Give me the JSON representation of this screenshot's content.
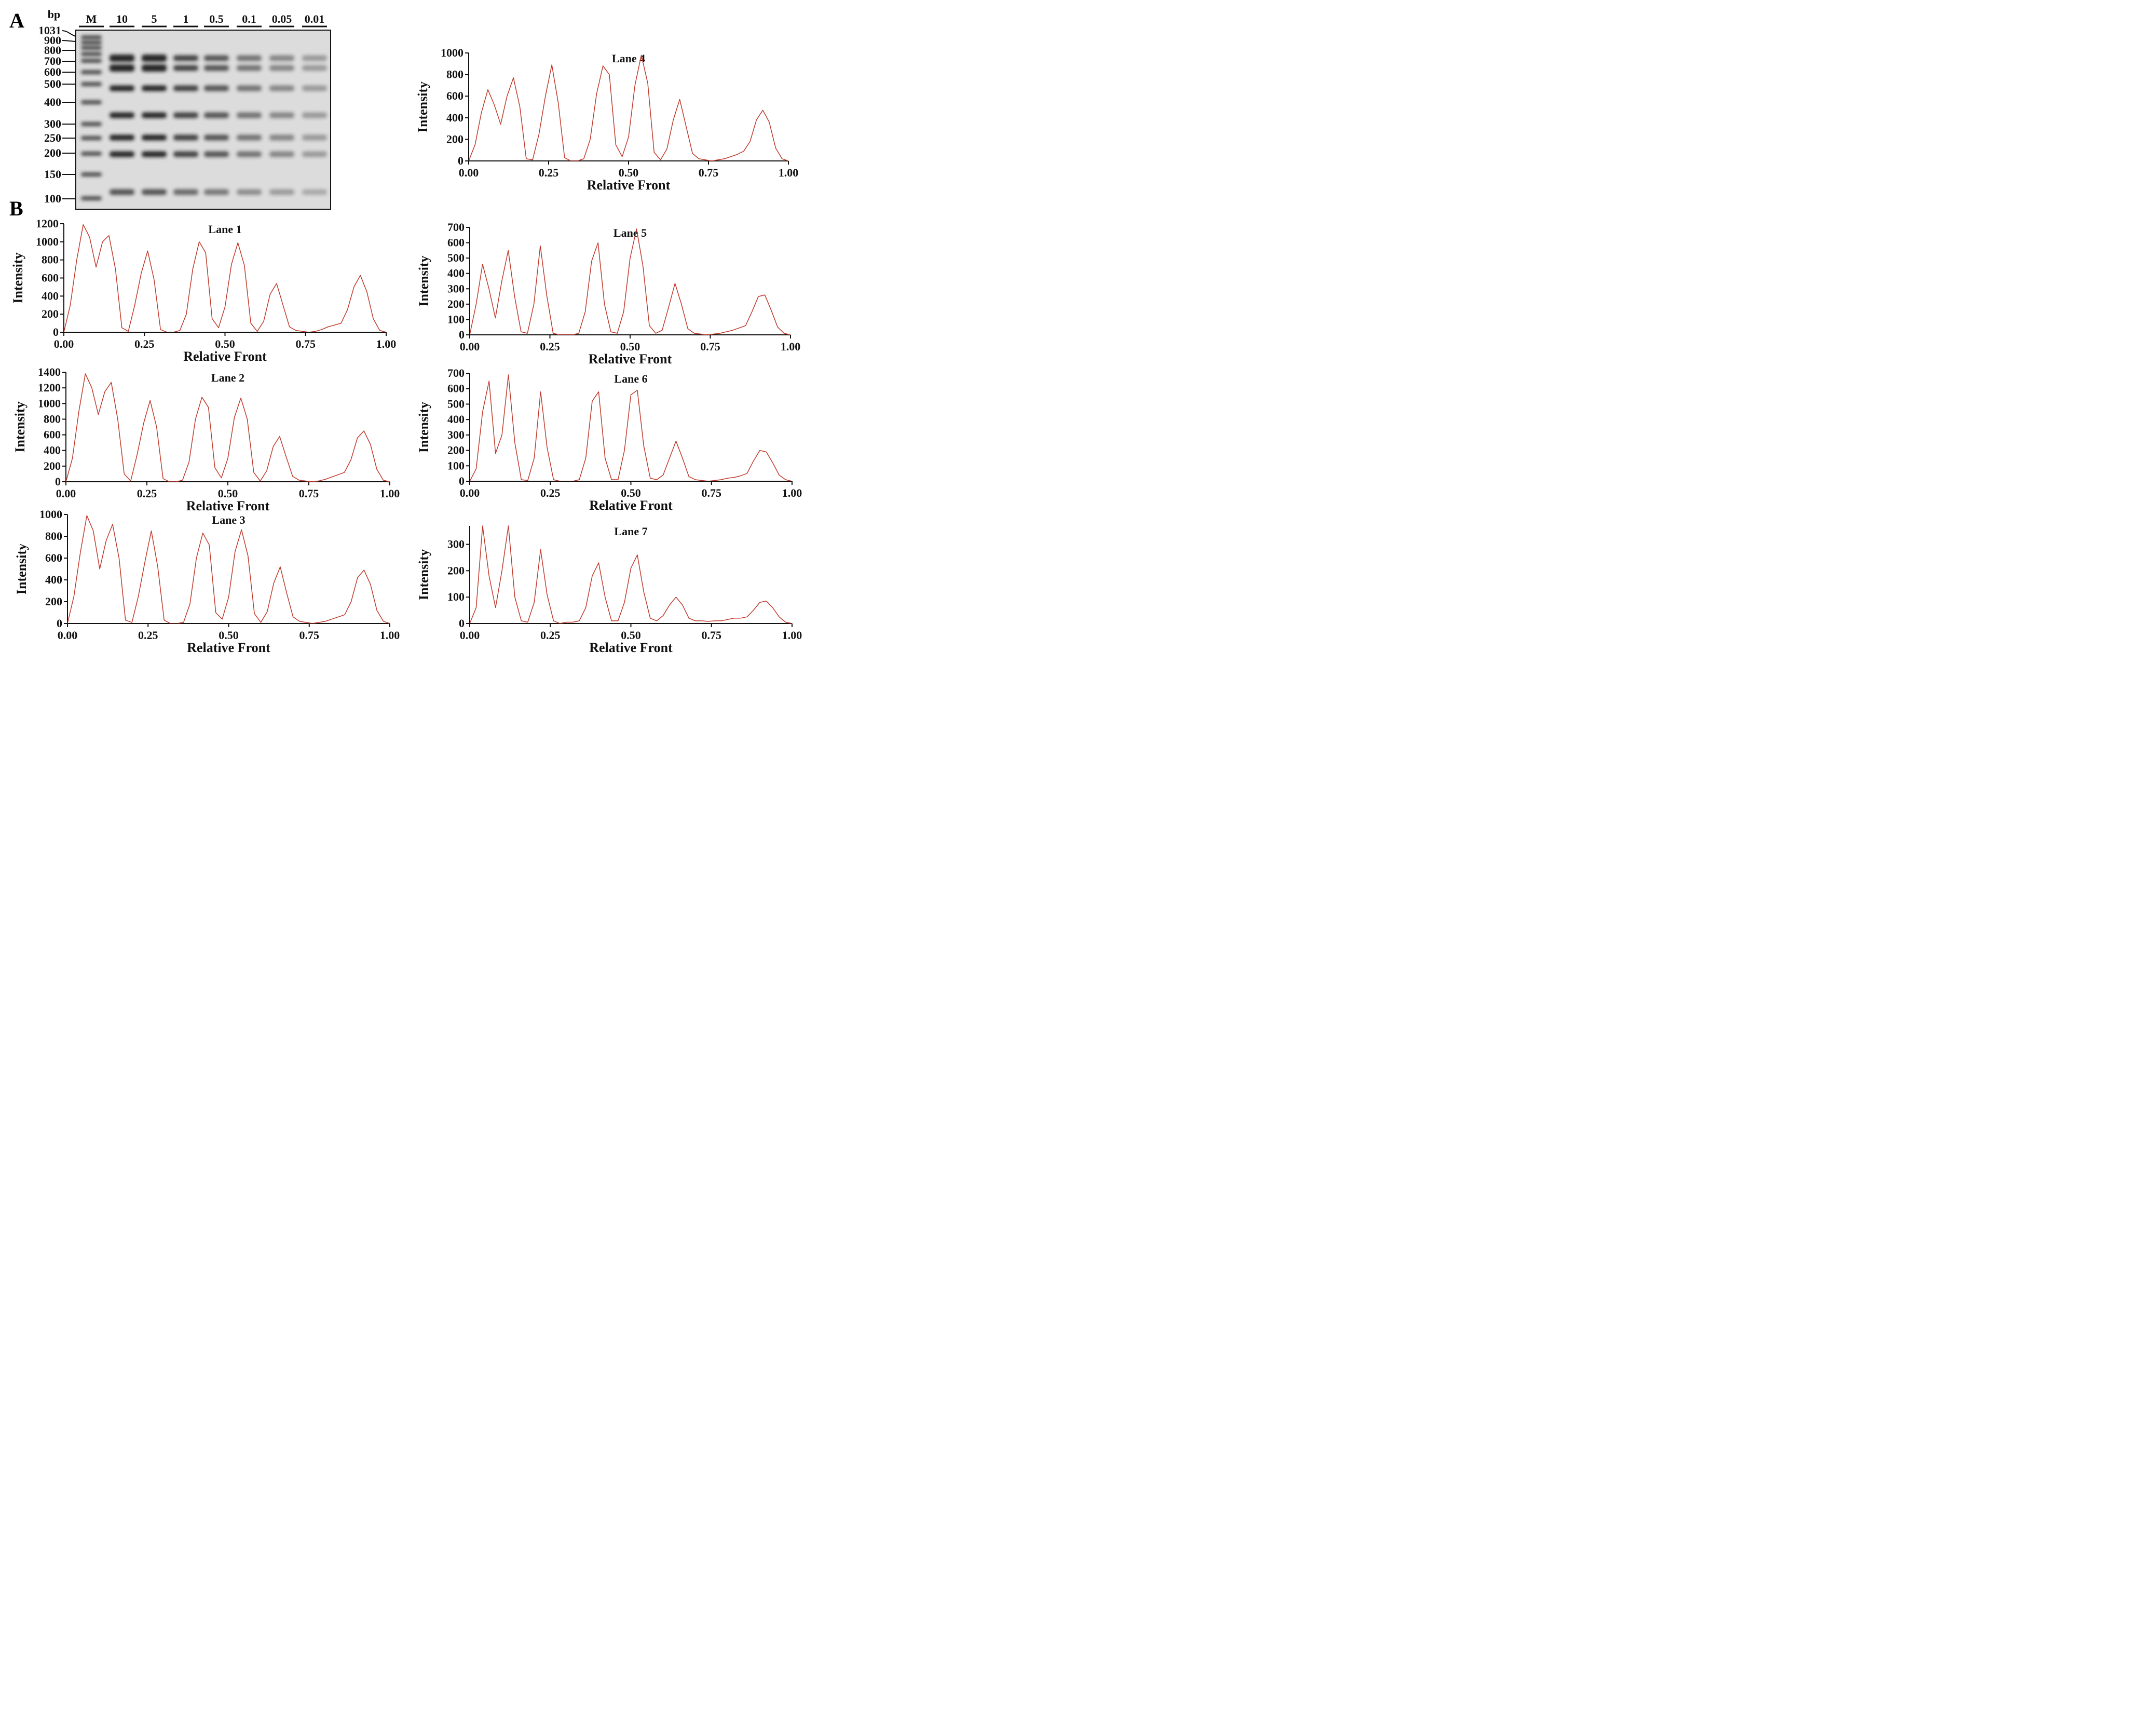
{
  "panels": {
    "a_label": "A",
    "b_label": "B"
  },
  "gel": {
    "unit_label": "bp",
    "lane_labels": [
      "M",
      "10",
      "5",
      "1",
      "0.5",
      "0.1",
      "0.05",
      "0.01"
    ],
    "marker_sizes": [
      "1031",
      "900",
      "800",
      "700",
      "600",
      "500",
      "400",
      "300",
      "250",
      "200",
      "150",
      "100"
    ]
  },
  "chart_data": [
    {
      "type": "line",
      "title": "Lane 1",
      "xlabel": "Relative Front",
      "ylabel": "Intensity",
      "xlim": [
        0,
        1
      ],
      "ylim": [
        0,
        1200
      ],
      "xticks": [
        "0.00",
        "0.25",
        "0.50",
        "0.75",
        "1.00"
      ],
      "yticks": [
        "0",
        "200",
        "400",
        "600",
        "800",
        "1000",
        "1200"
      ],
      "x": [
        0.0,
        0.02,
        0.04,
        0.06,
        0.08,
        0.1,
        0.12,
        0.14,
        0.16,
        0.18,
        0.2,
        0.22,
        0.24,
        0.26,
        0.28,
        0.3,
        0.32,
        0.34,
        0.36,
        0.38,
        0.4,
        0.42,
        0.44,
        0.46,
        0.48,
        0.5,
        0.52,
        0.54,
        0.56,
        0.58,
        0.6,
        0.62,
        0.64,
        0.66,
        0.68,
        0.7,
        0.72,
        0.74,
        0.76,
        0.78,
        0.8,
        0.82,
        0.84,
        0.86,
        0.88,
        0.9,
        0.92,
        0.94,
        0.96,
        0.98,
        1.0
      ],
      "y": [
        0,
        300,
        800,
        1190,
        1050,
        720,
        1000,
        1070,
        700,
        50,
        10,
        300,
        650,
        900,
        580,
        30,
        0,
        0,
        20,
        200,
        700,
        1000,
        880,
        150,
        50,
        280,
        750,
        990,
        740,
        100,
        10,
        120,
        420,
        540,
        300,
        60,
        20,
        10,
        0,
        10,
        30,
        60,
        80,
        100,
        250,
        500,
        630,
        450,
        150,
        20,
        0
      ]
    },
    {
      "type": "line",
      "title": "Lane 2",
      "xlabel": "Relative Front",
      "ylabel": "Intensity",
      "xlim": [
        0,
        1
      ],
      "ylim": [
        0,
        1400
      ],
      "xticks": [
        "0.00",
        "0.25",
        "0.50",
        "0.75",
        "1.00"
      ],
      "yticks": [
        "0",
        "200",
        "400",
        "600",
        "800",
        "1000",
        "1200",
        "1400"
      ],
      "x": [
        0.0,
        0.02,
        0.04,
        0.06,
        0.08,
        0.1,
        0.12,
        0.14,
        0.16,
        0.18,
        0.2,
        0.22,
        0.24,
        0.26,
        0.28,
        0.3,
        0.32,
        0.34,
        0.36,
        0.38,
        0.4,
        0.42,
        0.44,
        0.46,
        0.48,
        0.5,
        0.52,
        0.54,
        0.56,
        0.58,
        0.6,
        0.62,
        0.64,
        0.66,
        0.68,
        0.7,
        0.72,
        0.74,
        0.76,
        0.78,
        0.8,
        0.82,
        0.84,
        0.86,
        0.88,
        0.9,
        0.92,
        0.94,
        0.96,
        0.98,
        1.0
      ],
      "y": [
        0,
        300,
        900,
        1380,
        1200,
        860,
        1150,
        1270,
        800,
        100,
        10,
        350,
        750,
        1040,
        700,
        40,
        0,
        0,
        20,
        250,
        800,
        1080,
        950,
        180,
        50,
        300,
        820,
        1070,
        800,
        120,
        10,
        140,
        450,
        580,
        320,
        70,
        20,
        10,
        0,
        10,
        30,
        60,
        90,
        120,
        280,
        560,
        650,
        480,
        160,
        20,
        0
      ]
    },
    {
      "type": "line",
      "title": "Lane 3",
      "xlabel": "Relative Front",
      "ylabel": "Intensity",
      "xlim": [
        0,
        1
      ],
      "ylim": [
        0,
        1000
      ],
      "xticks": [
        "0.00",
        "0.25",
        "0.50",
        "0.75",
        "1.00"
      ],
      "yticks": [
        "0",
        "200",
        "400",
        "600",
        "800",
        "1000"
      ],
      "x": [
        0.0,
        0.02,
        0.04,
        0.06,
        0.08,
        0.1,
        0.12,
        0.14,
        0.16,
        0.18,
        0.2,
        0.22,
        0.24,
        0.26,
        0.28,
        0.3,
        0.32,
        0.34,
        0.36,
        0.38,
        0.4,
        0.42,
        0.44,
        0.46,
        0.48,
        0.5,
        0.52,
        0.54,
        0.56,
        0.58,
        0.6,
        0.62,
        0.64,
        0.66,
        0.68,
        0.7,
        0.72,
        0.74,
        0.76,
        0.78,
        0.8,
        0.82,
        0.84,
        0.86,
        0.88,
        0.9,
        0.92,
        0.94,
        0.96,
        0.98,
        1.0
      ],
      "y": [
        0,
        250,
        650,
        990,
        850,
        500,
        760,
        910,
        600,
        30,
        10,
        250,
        560,
        850,
        520,
        30,
        0,
        0,
        10,
        180,
        600,
        830,
        720,
        100,
        40,
        240,
        660,
        860,
        620,
        90,
        10,
        110,
        370,
        520,
        280,
        60,
        20,
        10,
        0,
        10,
        20,
        40,
        60,
        80,
        200,
        420,
        490,
        360,
        120,
        20,
        0
      ]
    },
    {
      "type": "line",
      "title": "Lane 4",
      "xlabel": "Relative Front",
      "ylabel": "Intensity",
      "xlim": [
        0,
        1
      ],
      "ylim": [
        0,
        1000
      ],
      "xticks": [
        "0.00",
        "0.25",
        "0.50",
        "0.75",
        "1.00"
      ],
      "yticks": [
        "0",
        "200",
        "400",
        "600",
        "800",
        "1000"
      ],
      "x": [
        0.0,
        0.02,
        0.04,
        0.06,
        0.08,
        0.1,
        0.12,
        0.14,
        0.16,
        0.18,
        0.2,
        0.22,
        0.24,
        0.26,
        0.28,
        0.3,
        0.32,
        0.34,
        0.36,
        0.38,
        0.4,
        0.42,
        0.44,
        0.46,
        0.48,
        0.5,
        0.52,
        0.54,
        0.56,
        0.58,
        0.6,
        0.62,
        0.64,
        0.66,
        0.68,
        0.7,
        0.72,
        0.74,
        0.76,
        0.78,
        0.8,
        0.82,
        0.84,
        0.86,
        0.88,
        0.9,
        0.92,
        0.94,
        0.96,
        0.98,
        1.0
      ],
      "y": [
        0,
        150,
        450,
        660,
        520,
        340,
        600,
        770,
        500,
        20,
        10,
        250,
        600,
        890,
        540,
        30,
        0,
        0,
        20,
        200,
        620,
        880,
        800,
        150,
        40,
        220,
        700,
        980,
        720,
        80,
        10,
        110,
        380,
        570,
        320,
        70,
        20,
        10,
        0,
        10,
        20,
        40,
        60,
        90,
        180,
        380,
        470,
        360,
        120,
        20,
        0
      ]
    },
    {
      "type": "line",
      "title": "Lane 5",
      "xlabel": "Relative Front",
      "ylabel": "Intensity",
      "xlim": [
        0,
        1
      ],
      "ylim": [
        0,
        700
      ],
      "xticks": [
        "0.00",
        "0.25",
        "0.50",
        "0.75",
        "1.00"
      ],
      "yticks": [
        "0",
        "100",
        "200",
        "300",
        "400",
        "500",
        "600",
        "700"
      ],
      "x": [
        0.0,
        0.02,
        0.04,
        0.06,
        0.08,
        0.1,
        0.12,
        0.14,
        0.16,
        0.18,
        0.2,
        0.22,
        0.24,
        0.26,
        0.28,
        0.3,
        0.32,
        0.34,
        0.36,
        0.38,
        0.4,
        0.42,
        0.44,
        0.46,
        0.48,
        0.5,
        0.52,
        0.54,
        0.56,
        0.58,
        0.6,
        0.62,
        0.64,
        0.66,
        0.68,
        0.7,
        0.72,
        0.74,
        0.76,
        0.78,
        0.8,
        0.82,
        0.84,
        0.86,
        0.88,
        0.9,
        0.92,
        0.94,
        0.96,
        0.98,
        1.0
      ],
      "y": [
        0,
        200,
        460,
        300,
        110,
        350,
        550,
        250,
        20,
        10,
        200,
        580,
        260,
        10,
        0,
        0,
        0,
        10,
        150,
        480,
        600,
        200,
        20,
        10,
        150,
        500,
        690,
        450,
        60,
        10,
        30,
        180,
        335,
        200,
        40,
        10,
        5,
        0,
        5,
        10,
        20,
        30,
        45,
        60,
        150,
        250,
        260,
        160,
        50,
        10,
        0
      ]
    },
    {
      "type": "line",
      "title": "Lane 6",
      "xlabel": "Relative Front",
      "ylabel": "Intensity",
      "xlim": [
        0,
        1
      ],
      "ylim": [
        0,
        700
      ],
      "xticks": [
        "0.00",
        "0.25",
        "0.50",
        "0.75",
        "1.00"
      ],
      "yticks": [
        "0",
        "100",
        "200",
        "300",
        "400",
        "500",
        "600",
        "700"
      ],
      "x": [
        0.0,
        0.02,
        0.04,
        0.06,
        0.08,
        0.1,
        0.12,
        0.14,
        0.16,
        0.18,
        0.2,
        0.22,
        0.24,
        0.26,
        0.28,
        0.3,
        0.32,
        0.34,
        0.36,
        0.38,
        0.4,
        0.42,
        0.44,
        0.46,
        0.48,
        0.5,
        0.52,
        0.54,
        0.56,
        0.58,
        0.6,
        0.62,
        0.64,
        0.66,
        0.68,
        0.7,
        0.72,
        0.74,
        0.76,
        0.78,
        0.8,
        0.82,
        0.84,
        0.86,
        0.88,
        0.9,
        0.92,
        0.94,
        0.96,
        0.98,
        1.0
      ],
      "y": [
        0,
        80,
        450,
        650,
        180,
        300,
        690,
        250,
        10,
        5,
        150,
        580,
        220,
        10,
        0,
        0,
        0,
        10,
        150,
        520,
        580,
        150,
        10,
        10,
        200,
        560,
        590,
        230,
        20,
        10,
        40,
        150,
        260,
        150,
        30,
        10,
        5,
        0,
        5,
        10,
        20,
        25,
        35,
        50,
        130,
        200,
        190,
        120,
        40,
        10,
        0
      ]
    },
    {
      "type": "line",
      "title": "Lane 7",
      "xlabel": "Relative Front",
      "ylabel": "Intensity",
      "xlim": [
        0,
        1
      ],
      "ylim": [
        0,
        370
      ],
      "xticks": [
        "0.00",
        "0.25",
        "0.50",
        "0.75",
        "1.00"
      ],
      "yticks": [
        "0",
        "100",
        "200",
        "300"
      ],
      "x": [
        0.0,
        0.02,
        0.04,
        0.06,
        0.08,
        0.1,
        0.12,
        0.14,
        0.16,
        0.18,
        0.2,
        0.22,
        0.24,
        0.26,
        0.28,
        0.3,
        0.32,
        0.34,
        0.36,
        0.38,
        0.4,
        0.42,
        0.44,
        0.46,
        0.48,
        0.5,
        0.52,
        0.54,
        0.56,
        0.58,
        0.6,
        0.62,
        0.64,
        0.66,
        0.68,
        0.7,
        0.72,
        0.74,
        0.76,
        0.78,
        0.8,
        0.82,
        0.84,
        0.86,
        0.88,
        0.9,
        0.92,
        0.94,
        0.96,
        0.98,
        1.0
      ],
      "y": [
        0,
        60,
        370,
        180,
        60,
        200,
        370,
        100,
        10,
        5,
        80,
        280,
        110,
        10,
        0,
        5,
        5,
        10,
        60,
        180,
        230,
        100,
        10,
        10,
        80,
        210,
        260,
        120,
        20,
        10,
        30,
        70,
        100,
        70,
        20,
        10,
        10,
        8,
        10,
        10,
        15,
        20,
        20,
        25,
        50,
        80,
        85,
        60,
        25,
        5,
        0
      ]
    }
  ]
}
